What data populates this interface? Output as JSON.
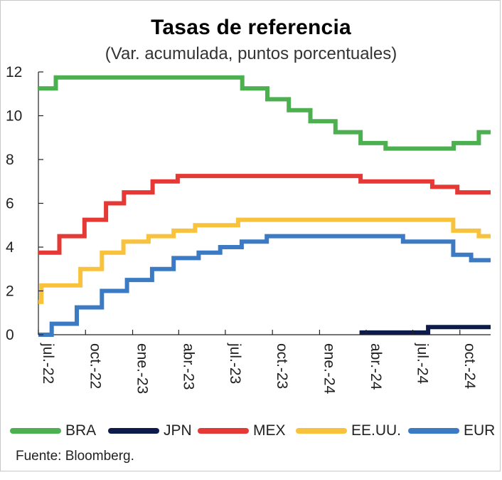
{
  "title": "Tasas de referencia",
  "subtitle": "(Var. acumulada, puntos porcentuales)",
  "source": "Fuente: Bloomberg.",
  "chart_data": {
    "type": "line",
    "line_shape": "step",
    "x_axis": "date",
    "xlim": [
      "2022-07-01",
      "2024-11-30"
    ],
    "ylim": [
      0,
      12
    ],
    "yticks": [
      0,
      2,
      4,
      6,
      8,
      10,
      12
    ],
    "yticks_labels": [
      "0",
      "2",
      "4",
      "6",
      "8",
      "10",
      "12"
    ],
    "xticks": [
      {
        "date": "2022-07-01",
        "label": "jul.-22"
      },
      {
        "date": "2022-10-01",
        "label": "oct.-22"
      },
      {
        "date": "2023-01-01",
        "label": "ene.-23"
      },
      {
        "date": "2023-04-01",
        "label": "abr.-23"
      },
      {
        "date": "2023-07-01",
        "label": "jul.-23"
      },
      {
        "date": "2023-10-01",
        "label": "oct.-23"
      },
      {
        "date": "2024-01-01",
        "label": "ene.-24"
      },
      {
        "date": "2024-04-01",
        "label": "abr.-24"
      },
      {
        "date": "2024-07-01",
        "label": "jul.-24"
      },
      {
        "date": "2024-10-01",
        "label": "oct.-24"
      }
    ],
    "grid": false,
    "legend_position": "bottom",
    "series": [
      {
        "name": "BRA",
        "color": "#4caf50",
        "points": [
          [
            "2022-07-01",
            11.25
          ],
          [
            "2022-08-04",
            11.75
          ],
          [
            "2023-08-03",
            11.25
          ],
          [
            "2023-09-21",
            10.75
          ],
          [
            "2023-11-02",
            10.25
          ],
          [
            "2023-12-14",
            9.75
          ],
          [
            "2024-02-01",
            9.25
          ],
          [
            "2024-03-21",
            8.75
          ],
          [
            "2024-05-09",
            8.5
          ],
          [
            "2024-09-19",
            8.75
          ],
          [
            "2024-11-07",
            9.25
          ],
          [
            "2024-11-30",
            9.25
          ]
        ]
      },
      {
        "name": "JPN",
        "color": "#0d1b4b",
        "points": [
          [
            "2024-03-19",
            0.1
          ],
          [
            "2024-07-31",
            0.35
          ],
          [
            "2024-11-30",
            0.35
          ]
        ]
      },
      {
        "name": "MEX",
        "color": "#e53935",
        "points": [
          [
            "2022-07-01",
            3.75
          ],
          [
            "2022-08-11",
            4.5
          ],
          [
            "2022-09-29",
            5.25
          ],
          [
            "2022-11-10",
            6.0
          ],
          [
            "2022-12-15",
            6.5
          ],
          [
            "2023-02-09",
            7.0
          ],
          [
            "2023-03-30",
            7.25
          ],
          [
            "2024-03-21",
            7.0
          ],
          [
            "2024-08-08",
            6.75
          ],
          [
            "2024-09-26",
            6.5
          ],
          [
            "2024-11-30",
            6.5
          ]
        ]
      },
      {
        "name": "EE.UU.",
        "color": "#f9c23c",
        "points": [
          [
            "2022-07-01",
            1.5
          ],
          [
            "2022-07-07",
            2.25
          ],
          [
            "2022-09-21",
            3.0
          ],
          [
            "2022-11-02",
            3.75
          ],
          [
            "2022-12-14",
            4.25
          ],
          [
            "2023-02-01",
            4.5
          ],
          [
            "2023-03-22",
            4.75
          ],
          [
            "2023-05-03",
            5.0
          ],
          [
            "2023-07-26",
            5.25
          ],
          [
            "2024-09-18",
            4.75
          ],
          [
            "2024-11-07",
            4.5
          ],
          [
            "2024-11-30",
            4.5
          ]
        ]
      },
      {
        "name": "EUR",
        "color": "#3c7bc4",
        "points": [
          [
            "2022-07-01",
            0.0
          ],
          [
            "2022-07-27",
            0.5
          ],
          [
            "2022-09-14",
            1.25
          ],
          [
            "2022-11-02",
            2.0
          ],
          [
            "2022-12-21",
            2.5
          ],
          [
            "2023-02-08",
            3.0
          ],
          [
            "2023-03-22",
            3.5
          ],
          [
            "2023-05-10",
            3.75
          ],
          [
            "2023-06-21",
            4.0
          ],
          [
            "2023-08-02",
            4.25
          ],
          [
            "2023-09-20",
            4.5
          ],
          [
            "2024-06-12",
            4.25
          ],
          [
            "2024-09-18",
            3.65
          ],
          [
            "2024-10-23",
            3.4
          ],
          [
            "2024-11-30",
            3.4
          ]
        ]
      }
    ]
  }
}
